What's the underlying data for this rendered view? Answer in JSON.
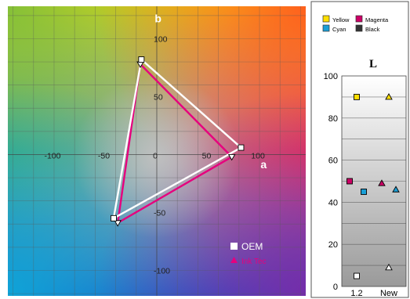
{
  "chart_data": [
    {
      "type": "scatter",
      "name": "ab-gamut-plot",
      "background": "CIELAB a*-b* color plane (green top-left, yellow top, red right, magenta bottom-right, blue/cyan bottom-left, neutral gray center)",
      "xlabel": "a",
      "ylabel": "b",
      "xlim": [
        -145,
        145
      ],
      "ylim": [
        -122,
        128
      ],
      "x_ticks": [
        -100,
        -50,
        0,
        50,
        100
      ],
      "y_ticks": [
        100,
        50,
        -50,
        -100
      ],
      "grid": true,
      "legend_position": "bottom-right",
      "series": [
        {
          "name": "OEM",
          "marker": "square",
          "color": "#ffffff",
          "points": [
            [
              -15,
              82
            ],
            [
              82,
              6
            ],
            [
              -42,
              -55
            ]
          ]
        },
        {
          "name": "Ink Tec",
          "marker": "triangle",
          "color": "#e6007e",
          "points": [
            [
              -16,
              78
            ],
            [
              73,
              -2
            ],
            [
              -38,
              -59
            ]
          ]
        }
      ]
    },
    {
      "type": "scatter",
      "name": "lightness-plot",
      "title": "L",
      "categories": [
        "1.2",
        "New"
      ],
      "ylim": [
        0,
        100
      ],
      "y_ticks": [
        0,
        20,
        40,
        60,
        80,
        100
      ],
      "grid": true,
      "legend_position": "top",
      "series": [
        {
          "name": "Yellow",
          "color": "#ffdf00",
          "values": [
            90,
            90
          ]
        },
        {
          "name": "Magenta",
          "color": "#cc0066",
          "values": [
            50,
            49
          ]
        },
        {
          "name": "Cyan",
          "color": "#1a9fd6",
          "values": [
            45,
            46
          ]
        },
        {
          "name": "Black",
          "color": "#333333",
          "values": [
            5,
            9
          ]
        }
      ],
      "markers": {
        "1.2": "square",
        "New": "triangle"
      }
    }
  ],
  "legend": {
    "oem": "OEM",
    "ink_tec": "Ink Tec",
    "yellow": "Yellow",
    "magenta": "Magenta",
    "cyan": "Cyan",
    "black": "Black"
  }
}
